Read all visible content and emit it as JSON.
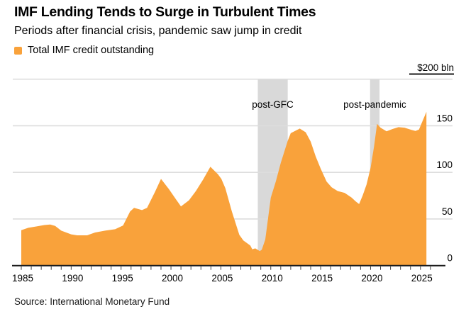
{
  "chart_data": {
    "type": "area",
    "title": "IMF Lending Tends to Surge in Turbulent Times",
    "subtitle": "Periods after financial crisis, pandemic saw jump in credit",
    "grid": true,
    "legend_position": "top-left",
    "x_axis": {
      "min": 1985,
      "max": 2026,
      "tick_interval": 1,
      "labeled_years": [
        1985,
        1990,
        1995,
        2000,
        2005,
        2010,
        2015,
        2020,
        2025
      ]
    },
    "y_axis": {
      "min": 0,
      "max": 200,
      "tick_interval": 50,
      "ticks": [
        {
          "value": 0,
          "label": "0"
        },
        {
          "value": 50,
          "label": "50"
        },
        {
          "value": 100,
          "label": "100"
        },
        {
          "value": 150,
          "label": "150"
        }
      ],
      "max_label": "$200 bln"
    },
    "bands": [
      {
        "label": "post-GFC",
        "from": 2008.7,
        "to": 2011.7,
        "color": "#D9D9D9"
      },
      {
        "label": "post-pandemic",
        "from": 2019.95,
        "to": 2020.9,
        "color": "#D9D9D9"
      }
    ],
    "series": [
      {
        "name": "Total IMF credit outstanding",
        "color": "#F9A23B",
        "points": [
          [
            1985,
            38
          ],
          [
            1985.7,
            40.5
          ],
          [
            1986.5,
            42
          ],
          [
            1987.3,
            43.5
          ],
          [
            1987.9,
            44
          ],
          [
            1988.4,
            42.5
          ],
          [
            1989,
            37.5
          ],
          [
            1990,
            33.5
          ],
          [
            1990.6,
            32.5
          ],
          [
            1991.6,
            32.5
          ],
          [
            1992.4,
            35.5
          ],
          [
            1993.4,
            37.5
          ],
          [
            1994.4,
            39
          ],
          [
            1995.2,
            43
          ],
          [
            1995.9,
            58
          ],
          [
            1996.3,
            62
          ],
          [
            1997.1,
            59.5
          ],
          [
            1997.6,
            62
          ],
          [
            1998.4,
            79
          ],
          [
            1999,
            93
          ],
          [
            1999.8,
            82
          ],
          [
            2000.5,
            71
          ],
          [
            2001,
            63.5
          ],
          [
            2001.8,
            70
          ],
          [
            2002.5,
            80
          ],
          [
            2003.2,
            92
          ],
          [
            2003.95,
            106
          ],
          [
            2004.7,
            98
          ],
          [
            2005.05,
            93
          ],
          [
            2005.45,
            83
          ],
          [
            2006.1,
            58
          ],
          [
            2006.85,
            33
          ],
          [
            2007.25,
            27
          ],
          [
            2007.95,
            21.5
          ],
          [
            2008.15,
            17.5
          ],
          [
            2008.45,
            18.5
          ],
          [
            2008.9,
            15.5
          ],
          [
            2009.1,
            17
          ],
          [
            2009.45,
            28
          ],
          [
            2010,
            73
          ],
          [
            2010.5,
            90
          ],
          [
            2011,
            110
          ],
          [
            2011.7,
            134
          ],
          [
            2012,
            142
          ],
          [
            2012.9,
            147
          ],
          [
            2013.5,
            143
          ],
          [
            2014,
            133
          ],
          [
            2014.5,
            117
          ],
          [
            2015,
            104
          ],
          [
            2015.6,
            90
          ],
          [
            2016.1,
            84
          ],
          [
            2016.7,
            80
          ],
          [
            2017.4,
            78
          ],
          [
            2018.1,
            73
          ],
          [
            2018.5,
            69
          ],
          [
            2018.85,
            66
          ],
          [
            2019.2,
            75
          ],
          [
            2019.6,
            87
          ],
          [
            2020,
            105
          ],
          [
            2020.35,
            128
          ],
          [
            2020.65,
            152
          ],
          [
            2021,
            148
          ],
          [
            2021.6,
            144
          ],
          [
            2022.2,
            146.5
          ],
          [
            2022.8,
            148.5
          ],
          [
            2023.4,
            148
          ],
          [
            2024.1,
            145.5
          ],
          [
            2024.5,
            144.5
          ],
          [
            2024.85,
            146
          ],
          [
            2025.6,
            165
          ]
        ]
      }
    ]
  },
  "footer": {
    "source": "Source: International Monetary Fund"
  }
}
